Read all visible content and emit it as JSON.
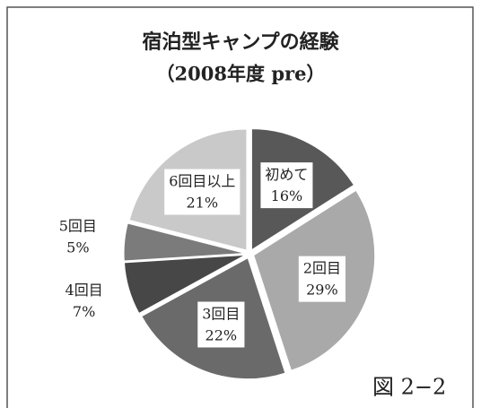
{
  "chart_data": {
    "type": "pie",
    "title": "宿泊型キャンプの経験",
    "subtitle": "（2008年度 pre）",
    "categories": [
      "初めて",
      "2回目",
      "3回目",
      "4回目",
      "5回目",
      "6回目以上"
    ],
    "values": [
      16,
      29,
      22,
      7,
      5,
      21
    ],
    "value_labels": [
      "16%",
      "29%",
      "22%",
      "7%",
      "5%",
      "21%"
    ],
    "colors": [
      "#585858",
      "#a9a9a9",
      "#6a6a6a",
      "#474747",
      "#7b7b7b",
      "#c9c9c9"
    ]
  },
  "figure_label": "図 2−2"
}
